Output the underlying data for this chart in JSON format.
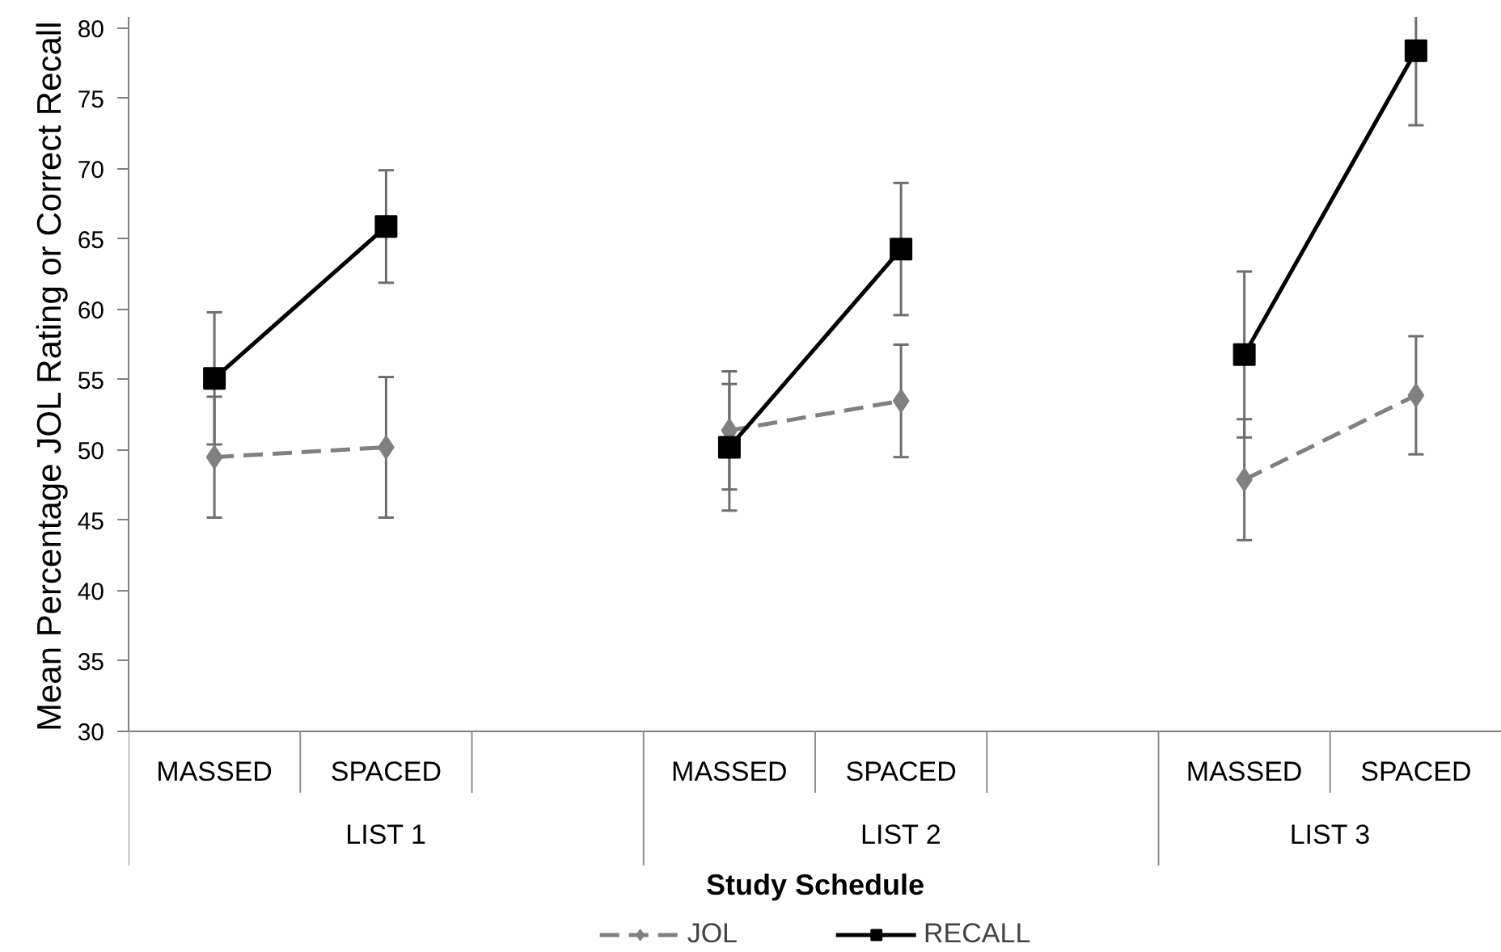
{
  "chart_data": {
    "type": "line",
    "xlabel": "Study Schedule",
    "ylabel": "Mean Percentage JOL Rating or Correct Recall",
    "categories": [
      "MASSED",
      "SPACED",
      null,
      "MASSED",
      "SPACED",
      null,
      "MASSED",
      "SPACED"
    ],
    "annotations": [
      "LIST 1",
      "LIST 2",
      "LIST 3"
    ],
    "ylim": [
      30,
      80.8
    ],
    "yticks": [
      30,
      35,
      40,
      45,
      50,
      55,
      60,
      65,
      70,
      75,
      80
    ],
    "legend": "bottom",
    "series": [
      {
        "name": "JOL",
        "color": "#808080",
        "marker": "diamond",
        "line_style": "dashed",
        "values": [
          49.5,
          50.2,
          null,
          51.4,
          53.5,
          null,
          47.9,
          53.9
        ],
        "errors": [
          4.3,
          5.0,
          null,
          4.2,
          4.0,
          null,
          4.3,
          4.2
        ]
      },
      {
        "name": "RECALL",
        "color": "#000000",
        "marker": "square",
        "line_style": "solid",
        "values": [
          55.1,
          65.9,
          null,
          50.2,
          64.3,
          null,
          56.8,
          78.4
        ],
        "errors": [
          4.7,
          4.0,
          null,
          4.5,
          4.7,
          null,
          5.9,
          [
            73.1,
            80.8
          ]
        ]
      }
    ]
  }
}
